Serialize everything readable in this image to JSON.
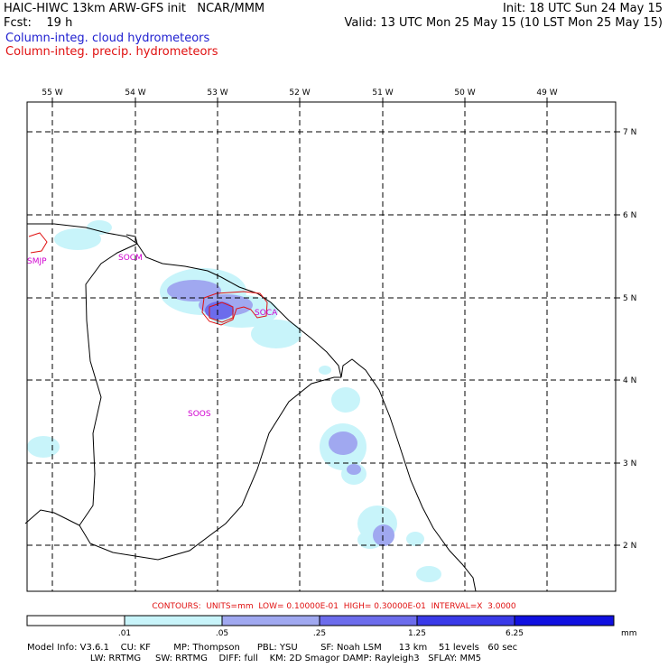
{
  "header": {
    "line1_left": "HAIC-HIWC 13km ARW-GFS init   NCAR/MMM",
    "line1_right": "Init: 18 UTC Sun 24 May 15",
    "line2_left": "Fcst:    19 h",
    "line2_right": "Valid: 13 UTC Mon 25 May 15 (10 LST Mon 25 May 15)",
    "field_cloud": "Column-integ. cloud hydrometeors",
    "field_precip": "Column-integ. precip. hydrometeors"
  },
  "map": {
    "lon_labels": [
      "55 W",
      "54 W",
      "53 W",
      "52 W",
      "51 W",
      "50 W",
      "49 W"
    ],
    "lat_labels": [
      "7 N",
      "6 N",
      "5 N",
      "4 N",
      "3 N",
      "2 N"
    ],
    "stations": [
      {
        "id": "SMJP"
      },
      {
        "id": "SOCM"
      },
      {
        "id": "SOCA"
      },
      {
        "id": "SOOS"
      }
    ],
    "colors": {
      "shade1": "#c8f4fa",
      "shade2": "#a0a8f0",
      "shade3": "#6c6cec",
      "shade4": "#3a3ae8",
      "shade5": "#1010e0",
      "precip_contour": "#e01010",
      "station_label": "#d000d0"
    }
  },
  "contours_info": "CONTOURS:  UNITS=mm  LOW= 0.10000E-01  HIGH= 0.30000E-01  INTERVAL=X  3.0000",
  "colorbar": {
    "labels": [
      ".01",
      ".05",
      ".25",
      "1.25",
      "6.25"
    ],
    "unit": "mm"
  },
  "model_info": {
    "line1": "Model Info: V3.6.1    CU: KF        MP: Thompson      PBL: YSU        SF: Noah LSM      13 km    51 levels   60 sec",
    "line2": "                      LW: RRTMG     SW: RRTMG    DIFF: full    KM: 2D Smagor DAMP: Rayleigh3   SFLAY: MM5"
  }
}
